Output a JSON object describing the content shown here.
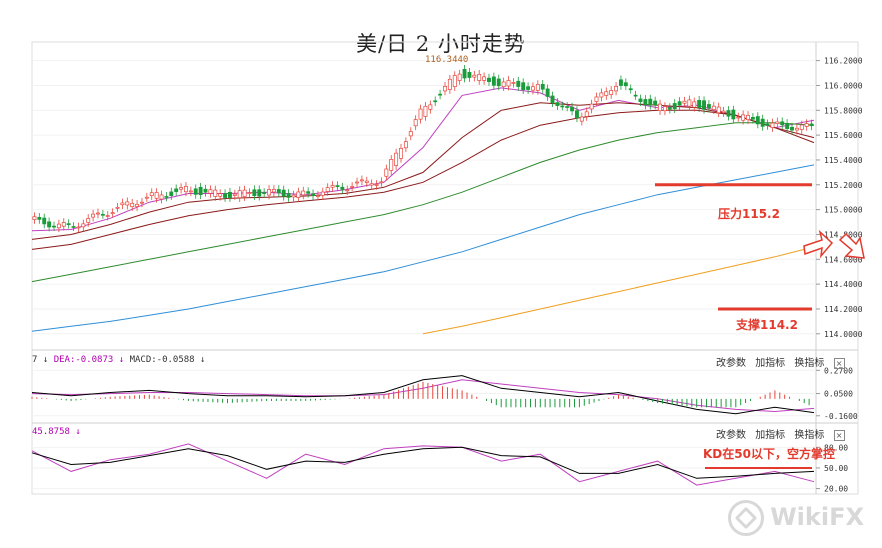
{
  "title": "美/日 2 小时走势",
  "macd_header": {
    "prefix": "7",
    "dea": "DEA:-0.0873",
    "macd": "MACD:-0.0588"
  },
  "kd_header": {
    "value": "45.8758"
  },
  "toolbar": {
    "params": "改参数",
    "add": "加指标",
    "switch": "换指标",
    "close": "×"
  },
  "annotations": {
    "pressure": "压力115.2",
    "support": "支撑114.2",
    "kd_note": "KD在50以下，空方掌控",
    "high_mark": "116.3440"
  },
  "watermark": "WikiFX",
  "colors": {
    "up": "#e8443a",
    "down": "#1a9c3a",
    "annotation": "#e23b2e",
    "ma_fast": "#000000",
    "ma_mid": "#c040c0",
    "ma_slow": "#8b1a1a",
    "ma_60": "#2e8b2e",
    "ma_120": "#2f8fd8",
    "ma_250": "#f0a020",
    "dea": "#c040c0",
    "dif": "#000000"
  },
  "chart_data": [
    {
      "type": "line",
      "title": "美/日 2 小时走势",
      "ylim": [
        113.95,
        116.35
      ],
      "y_ticks": [
        "116.2000",
        "116.0000",
        "115.8000",
        "115.6000",
        "115.4000",
        "115.2000",
        "115.0000",
        "114.8000",
        "114.6000",
        "114.4000",
        "114.2000",
        "114.0000"
      ],
      "x": [
        0,
        5,
        10,
        15,
        20,
        25,
        30,
        35,
        40,
        45,
        50,
        55,
        60,
        65,
        70,
        75,
        80,
        85,
        90,
        95,
        100
      ],
      "series": [
        {
          "name": "price",
          "values": [
            114.92,
            114.86,
            114.98,
            115.1,
            115.16,
            115.12,
            115.14,
            115.12,
            115.18,
            115.24,
            115.78,
            116.1,
            116.02,
            115.98,
            115.74,
            116.02,
            115.82,
            115.86,
            115.76,
            115.68,
            115.66
          ]
        },
        {
          "values": [
            114.83,
            114.84,
            114.93,
            115.06,
            115.13,
            115.13,
            115.14,
            115.12,
            115.16,
            115.22,
            115.5,
            115.92,
            115.98,
            115.94,
            115.8,
            115.88,
            115.82,
            115.84,
            115.76,
            115.66,
            115.72
          ]
        },
        {
          "values": [
            114.76,
            114.8,
            114.88,
            114.98,
            115.06,
            115.09,
            115.1,
            115.11,
            115.13,
            115.18,
            115.3,
            115.58,
            115.8,
            115.86,
            115.84,
            115.86,
            115.84,
            115.82,
            115.76,
            115.66,
            115.58
          ]
        },
        {
          "values": [
            114.68,
            114.72,
            114.8,
            114.88,
            114.95,
            115.0,
            115.04,
            115.07,
            115.1,
            115.14,
            115.22,
            115.38,
            115.56,
            115.68,
            115.74,
            115.78,
            115.8,
            115.8,
            115.76,
            115.66,
            115.54
          ]
        },
        {
          "values": [
            114.42,
            114.48,
            114.54,
            114.6,
            114.66,
            114.72,
            114.78,
            114.84,
            114.9,
            114.96,
            115.04,
            115.14,
            115.26,
            115.38,
            115.48,
            115.56,
            115.62,
            115.66,
            115.7,
            115.7,
            115.68
          ]
        },
        {
          "values": [
            114.02,
            114.06,
            114.1,
            114.15,
            114.2,
            114.26,
            114.32,
            114.38,
            114.44,
            114.5,
            114.58,
            114.66,
            114.76,
            114.86,
            114.96,
            115.04,
            115.12,
            115.18,
            115.24,
            115.3,
            115.36
          ]
        },
        {
          "values": [
            null,
            null,
            null,
            null,
            null,
            null,
            null,
            null,
            null,
            null,
            114.0,
            114.06,
            114.13,
            114.2,
            114.27,
            114.34,
            114.41,
            114.48,
            114.55,
            114.62,
            114.7
          ]
        }
      ],
      "levels": [
        115.2,
        114.2
      ]
    },
    {
      "type": "line",
      "ylim": [
        -0.2,
        0.32
      ],
      "y_ticks": [
        "0.2700",
        "0.0500",
        "-0.1600"
      ],
      "x": [
        0,
        5,
        10,
        15,
        20,
        25,
        30,
        35,
        40,
        45,
        50,
        55,
        60,
        65,
        70,
        75,
        80,
        85,
        90,
        95,
        100
      ],
      "series": [
        {
          "name": "DEA",
          "values": [
            0.05,
            0.04,
            0.05,
            0.06,
            0.06,
            0.05,
            0.04,
            0.03,
            0.03,
            0.04,
            0.1,
            0.18,
            0.14,
            0.1,
            0.06,
            0.04,
            0.0,
            -0.06,
            -0.1,
            -0.12,
            -0.09
          ]
        },
        {
          "name": "DIF",
          "values": [
            0.06,
            0.03,
            0.06,
            0.08,
            0.05,
            0.03,
            0.03,
            0.02,
            0.03,
            0.06,
            0.18,
            0.22,
            0.1,
            0.06,
            0.02,
            0.06,
            -0.02,
            -0.1,
            -0.14,
            -0.08,
            -0.13
          ]
        }
      ]
    },
    {
      "type": "line",
      "ylim": [
        15,
        95
      ],
      "y_ticks": [
        "80.00",
        "50.00",
        "20.00"
      ],
      "x": [
        0,
        5,
        10,
        15,
        20,
        25,
        30,
        35,
        40,
        45,
        50,
        55,
        60,
        65,
        70,
        75,
        80,
        85,
        90,
        95,
        100
      ],
      "series": [
        {
          "name": "K",
          "values": [
            75,
            45,
            62,
            70,
            85,
            60,
            35,
            70,
            55,
            78,
            82,
            80,
            60,
            70,
            30,
            45,
            60,
            25,
            35,
            45,
            30
          ]
        },
        {
          "name": "D",
          "values": [
            72,
            55,
            58,
            68,
            78,
            68,
            48,
            60,
            58,
            70,
            78,
            80,
            68,
            66,
            42,
            42,
            55,
            35,
            38,
            42,
            45
          ]
        }
      ],
      "levels": [
        50
      ]
    }
  ]
}
